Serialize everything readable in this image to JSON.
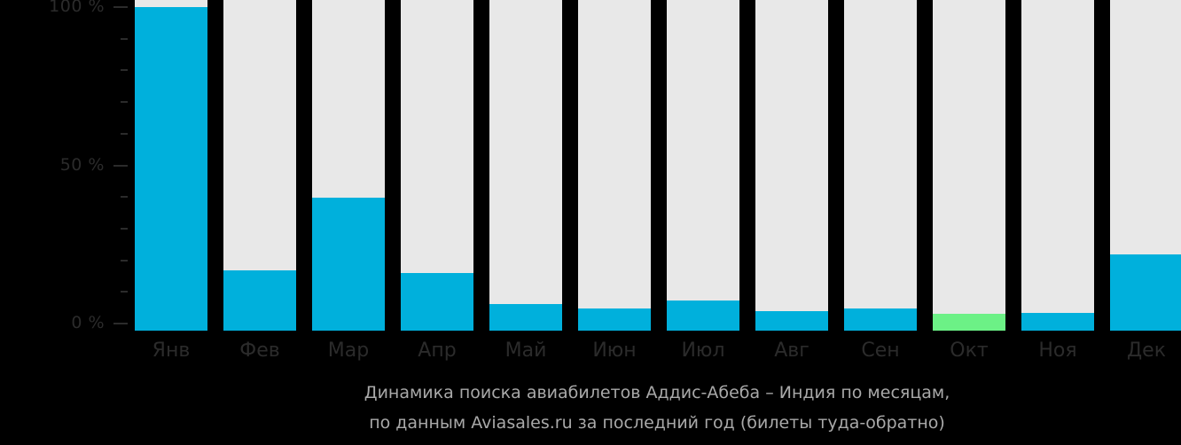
{
  "chart_data": {
    "type": "bar",
    "title": "Динамика поиска авиабилетов Аддис-Абеба – Индия по месяцам,",
    "subtitle": "по данным Aviasales.ru за последний год (билеты туда-обратно)",
    "xlabel": "",
    "ylabel": "",
    "ylim": [
      0,
      100
    ],
    "y_ticks": [
      "0 %",
      "50 %",
      "100 %"
    ],
    "grid": false,
    "legend": null,
    "categories": [
      "Янв",
      "Фев",
      "Мар",
      "Апр",
      "Май",
      "Июн",
      "Июл",
      "Авг",
      "Сен",
      "Окт",
      "Ноя",
      "Дек"
    ],
    "values": [
      100,
      16.8,
      39.8,
      16.0,
      6.2,
      4.8,
      7.3,
      3.9,
      4.8,
      3.1,
      3.4,
      21.8
    ],
    "highlight_index": 9,
    "colors": {
      "bar": "#00b0dc",
      "highlight": "#6cf186",
      "track": "#e8e8e8",
      "background": "#000000",
      "axis_text": "#2b2b2b",
      "caption_text": "#a9a9a9"
    }
  },
  "axis": {
    "y_labels": [
      {
        "label": "100 %",
        "pct": 100
      },
      {
        "label": "50 %",
        "pct": 50
      },
      {
        "label": "0 %",
        "pct": 0
      }
    ]
  },
  "caption": {
    "line1": "Динамика поиска авиабилетов Аддис-Абеба – Индия по месяцам,",
    "line2": "по данным Aviasales.ru за последний год (билеты туда-обратно)"
  }
}
